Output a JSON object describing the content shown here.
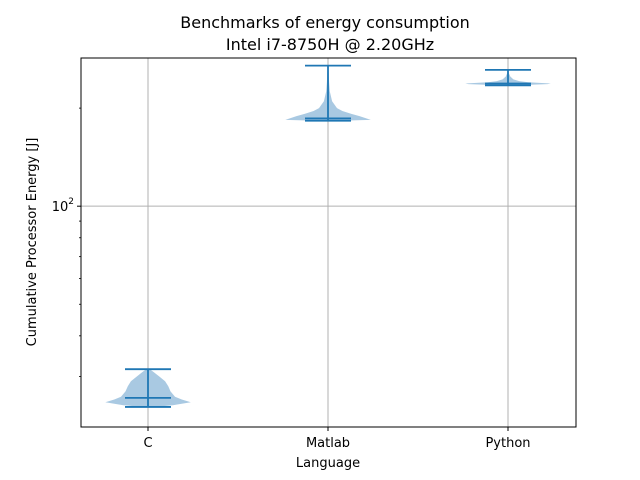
{
  "chart_data": {
    "type": "violin",
    "title_line1": "Benchmarks of energy consumption",
    "title_line2": "Intel i7-8750H @ 2.20GHz",
    "xlabel": "Language",
    "ylabel": "Cumulative Processor Energy [J]",
    "yscale": "log",
    "ylim": [
      21.0,
      285.0
    ],
    "grid": true,
    "ytick_major": {
      "value": 100,
      "label_base": "10",
      "label_exp": "2"
    },
    "categories": [
      "C",
      "Matlab",
      "Python"
    ],
    "violins": [
      {
        "category": "C",
        "min": 24.2,
        "mean": 25.8,
        "median": 25.8,
        "max": 31.6,
        "density_y": [
          24.2,
          24.5,
          25.0,
          25.5,
          26.0,
          27.0,
          28.0,
          29.0,
          30.0,
          31.0,
          31.6
        ],
        "density_w": [
          0.15,
          0.55,
          0.95,
          0.75,
          0.6,
          0.5,
          0.45,
          0.38,
          0.25,
          0.12,
          0.04
        ]
      },
      {
        "category": "Matlab",
        "min": 183,
        "mean": 186,
        "median": 186,
        "max": 270,
        "density_y": [
          183,
          184,
          186,
          189,
          192,
          196,
          200,
          210,
          225,
          240,
          255,
          270
        ],
        "density_w": [
          0.25,
          0.95,
          0.85,
          0.7,
          0.52,
          0.32,
          0.2,
          0.09,
          0.04,
          0.025,
          0.015,
          0.005
        ]
      },
      {
        "category": "Python",
        "min": 235,
        "mean": 238,
        "median": 238,
        "max": 262,
        "density_y": [
          235,
          236,
          237,
          238,
          239,
          240,
          242,
          245,
          250,
          256,
          262
        ],
        "density_w": [
          0.05,
          0.5,
          0.88,
          0.95,
          0.7,
          0.45,
          0.25,
          0.12,
          0.05,
          0.02,
          0.005
        ]
      }
    ],
    "colors": {
      "body": "#a9c9e2",
      "lines": "#1f77b4",
      "grid": "#b0b0b0"
    }
  }
}
